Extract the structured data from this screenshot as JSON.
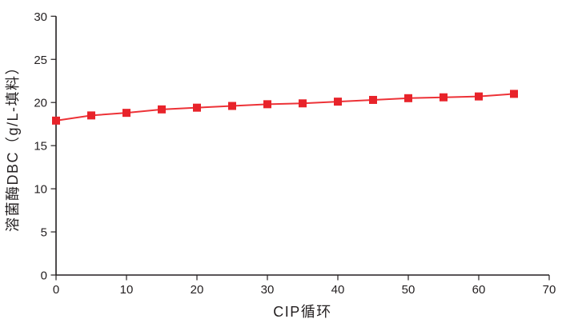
{
  "chart_data": {
    "type": "line",
    "title": "",
    "xlabel": "CIP循环",
    "ylabel": "溶菌酶DBC（g/L-填料）",
    "x": [
      0,
      5,
      10,
      15,
      20,
      25,
      30,
      35,
      40,
      45,
      50,
      55,
      60,
      65
    ],
    "y": [
      17.9,
      18.5,
      18.8,
      19.2,
      19.4,
      19.6,
      19.8,
      19.9,
      20.1,
      20.3,
      20.5,
      20.6,
      20.7,
      21.0
    ],
    "xlim": [
      0,
      70
    ],
    "ylim": [
      0,
      30
    ],
    "xticks": [
      0,
      10,
      20,
      30,
      40,
      50,
      60,
      70
    ],
    "yticks": [
      0,
      5,
      10,
      15,
      20,
      25,
      30
    ],
    "grid": false,
    "legend_position": "none",
    "marker": "square",
    "marker_size": 10,
    "line_color": "#ED3237",
    "marker_color": "#E8232A",
    "axis_color": "#231F20",
    "text_color": "#231F20",
    "background": "#FFFFFF"
  }
}
